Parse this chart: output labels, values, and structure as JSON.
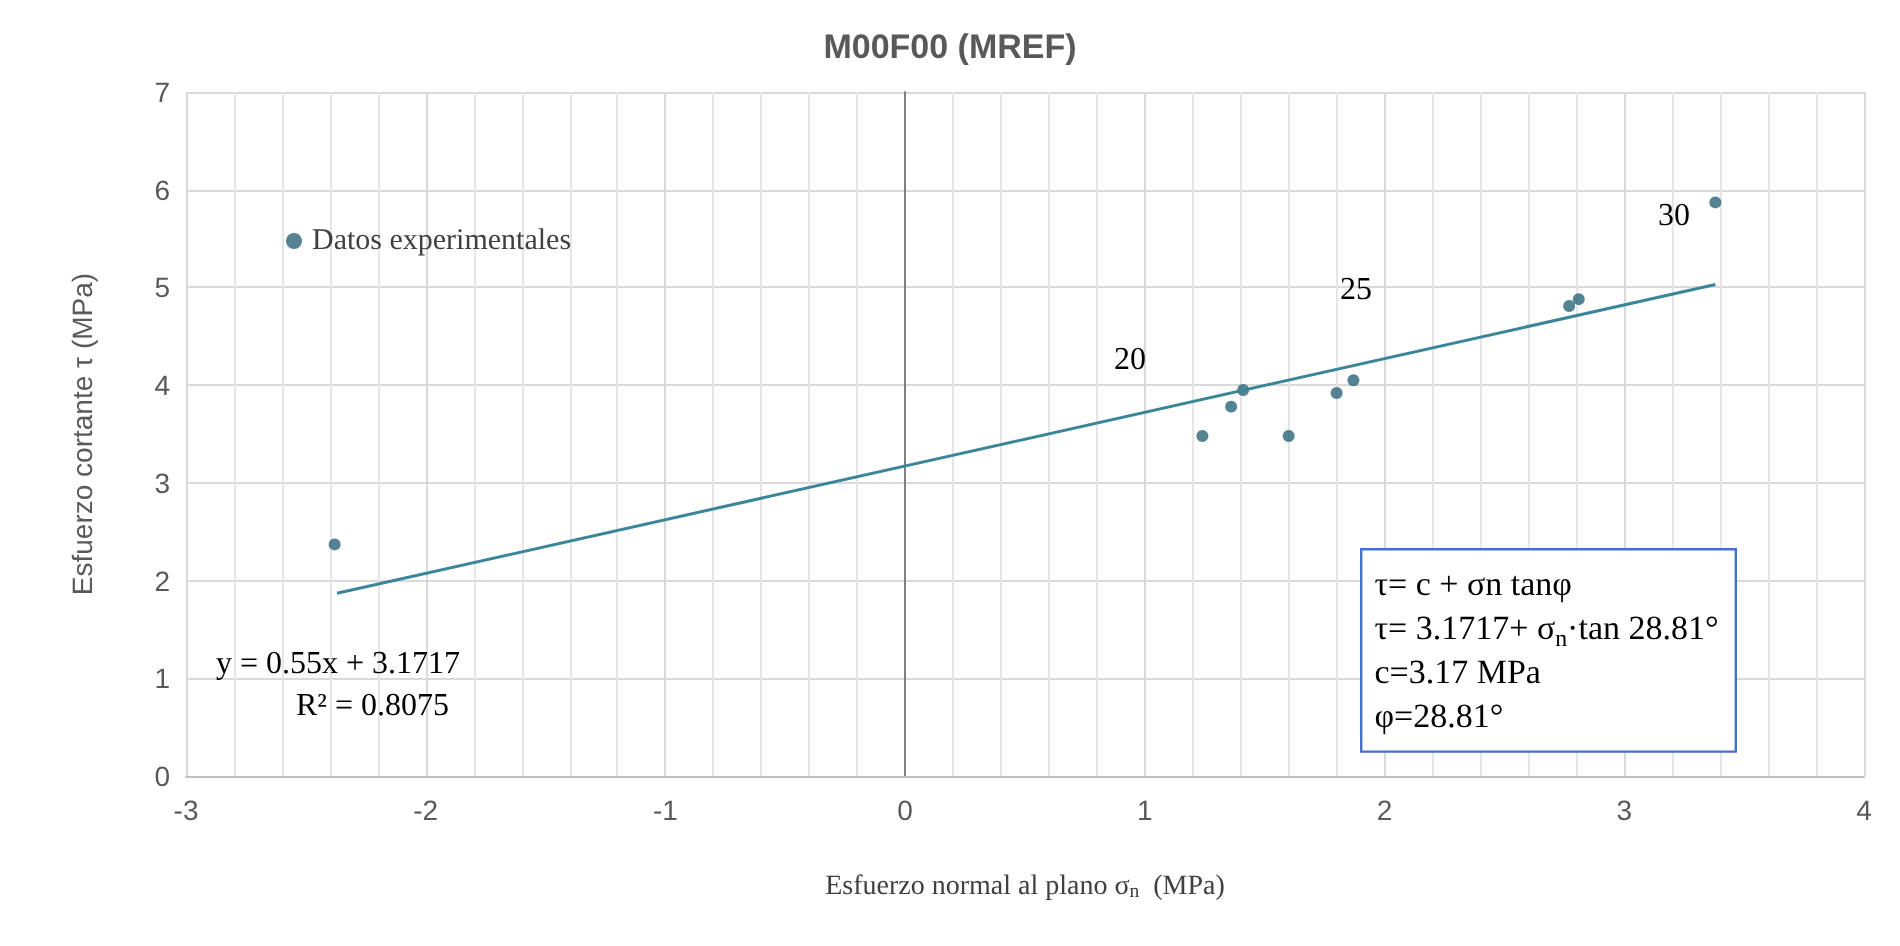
{
  "chart_data": {
    "type": "scatter",
    "title": "M00F00 (MREF)",
    "xlabel": "Esfuerzo normal al plano σ$_{n}$  (MPa)",
    "ylabel": "Esfuerzo cortante τ (MPa)",
    "series": [
      {
        "name": "Datos experimentales",
        "marker": "circle",
        "color": "#2a6478",
        "x": [
          -2.38,
          1.24,
          1.36,
          1.41,
          1.6,
          1.8,
          1.87,
          2.77,
          2.81,
          3.38
        ],
        "values": [
          2.37,
          3.48,
          3.78,
          3.95,
          3.48,
          3.92,
          4.05,
          4.81,
          4.88,
          5.87
        ]
      },
      {
        "type": "line",
        "color": "#3a8597",
        "x": [
          -2.37,
          3.38
        ],
        "values": [
          1.87,
          5.03
        ]
      }
    ],
    "annotations": [
      "y = 0.55x + 3.1717",
      "R² = 0.8075",
      "τ= c + σn tanφ\nτ= 3.1717+ σ$_{n}$·tan 28.81°\nc=3.17 MPa\nφ=28.81°",
      "20",
      "25",
      "30"
    ],
    "xlim": [
      -3,
      4
    ],
    "xticks": [
      -3,
      -2,
      -1,
      0,
      1,
      2,
      3,
      4
    ],
    "ylim": [
      0,
      7
    ],
    "yticks": [
      0,
      1,
      2,
      3,
      4,
      5,
      6,
      7
    ],
    "grid": true,
    "legend": "top left"
  }
}
